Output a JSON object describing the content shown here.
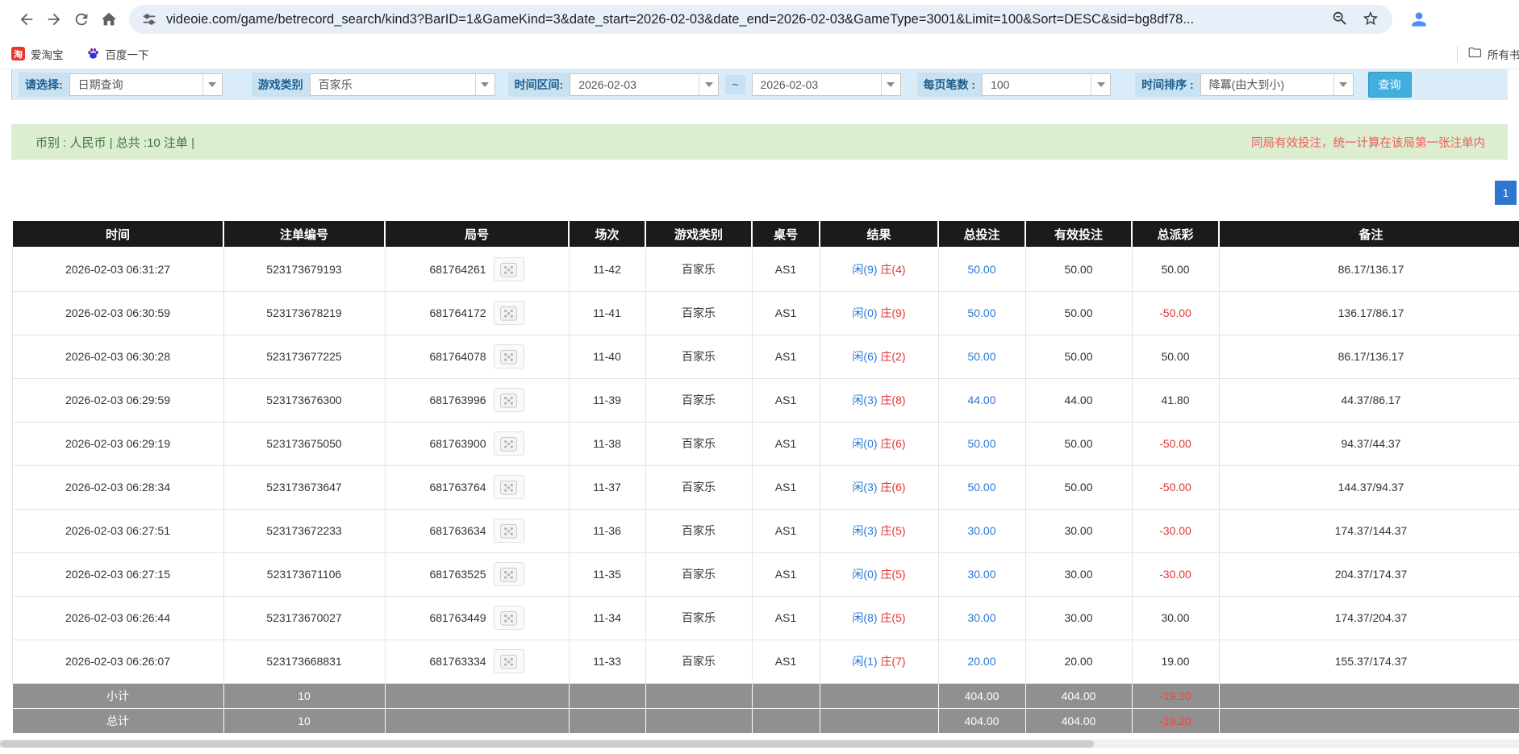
{
  "browser": {
    "url": "videoie.com/game/betrecord_search/kind3?BarID=1&GameKind=3&date_start=2026-02-03&date_end=2026-02-03&GameType=3001&Limit=100&Sort=DESC&sid=bg8df78...",
    "bookmarks": [
      {
        "label": "爱淘宝",
        "icon": "taobao-icon",
        "icon_glyph": "淘"
      },
      {
        "label": "百度一下",
        "icon": "baidu-paw-icon"
      }
    ],
    "all_bookmarks_label": "所有书签"
  },
  "filters": {
    "select_label": "请选择:",
    "select_value": "日期查询",
    "game_kind_label": "游戏类别",
    "game_kind_value": "百家乐",
    "date_range_label": "时间区间:",
    "date_start": "2026-02-03",
    "tilde": "~",
    "date_end": "2026-02-03",
    "per_page_label": "每页笔数 :",
    "per_page_value": "100",
    "sort_label": "时间排序 :",
    "sort_value": "降冪(由大到小)",
    "search_button": "查询"
  },
  "summary": {
    "left": "币别 : 人民币 | 总共 :10 注单 |",
    "right": "同局有效投注，统一计算在该局第一张注单内"
  },
  "pagination": {
    "current": "1"
  },
  "table": {
    "headers": [
      "时间",
      "注单编号",
      "局号",
      "场次",
      "游戏类别",
      "桌号",
      "结果",
      "总投注",
      "有效投注",
      "总派彩",
      "备注"
    ],
    "rows": [
      {
        "time": "2026-02-03 06:31:27",
        "bet_id": "523173679193",
        "round_id": "681764261",
        "session": "11-42",
        "game": "百家乐",
        "table": "AS1",
        "result_player": "闲(9)",
        "result_banker": "庄(4)",
        "total_bet": "50.00",
        "valid_bet": "50.00",
        "payout": "50.00",
        "remark": "86.17/136.17"
      },
      {
        "time": "2026-02-03 06:30:59",
        "bet_id": "523173678219",
        "round_id": "681764172",
        "session": "11-41",
        "game": "百家乐",
        "table": "AS1",
        "result_player": "闲(0)",
        "result_banker": "庄(9)",
        "total_bet": "50.00",
        "valid_bet": "50.00",
        "payout": "-50.00",
        "remark": "136.17/86.17"
      },
      {
        "time": "2026-02-03 06:30:28",
        "bet_id": "523173677225",
        "round_id": "681764078",
        "session": "11-40",
        "game": "百家乐",
        "table": "AS1",
        "result_player": "闲(6)",
        "result_banker": "庄(2)",
        "total_bet": "50.00",
        "valid_bet": "50.00",
        "payout": "50.00",
        "remark": "86.17/136.17"
      },
      {
        "time": "2026-02-03 06:29:59",
        "bet_id": "523173676300",
        "round_id": "681763996",
        "session": "11-39",
        "game": "百家乐",
        "table": "AS1",
        "result_player": "闲(3)",
        "result_banker": "庄(8)",
        "total_bet": "44.00",
        "valid_bet": "44.00",
        "payout": "41.80",
        "remark": "44.37/86.17"
      },
      {
        "time": "2026-02-03 06:29:19",
        "bet_id": "523173675050",
        "round_id": "681763900",
        "session": "11-38",
        "game": "百家乐",
        "table": "AS1",
        "result_player": "闲(0)",
        "result_banker": "庄(6)",
        "total_bet": "50.00",
        "valid_bet": "50.00",
        "payout": "-50.00",
        "remark": "94.37/44.37"
      },
      {
        "time": "2026-02-03 06:28:34",
        "bet_id": "523173673647",
        "round_id": "681763764",
        "session": "11-37",
        "game": "百家乐",
        "table": "AS1",
        "result_player": "闲(3)",
        "result_banker": "庄(6)",
        "total_bet": "50.00",
        "valid_bet": "50.00",
        "payout": "-50.00",
        "remark": "144.37/94.37"
      },
      {
        "time": "2026-02-03 06:27:51",
        "bet_id": "523173672233",
        "round_id": "681763634",
        "session": "11-36",
        "game": "百家乐",
        "table": "AS1",
        "result_player": "闲(3)",
        "result_banker": "庄(5)",
        "total_bet": "30.00",
        "valid_bet": "30.00",
        "payout": "-30.00",
        "remark": "174.37/144.37"
      },
      {
        "time": "2026-02-03 06:27:15",
        "bet_id": "523173671106",
        "round_id": "681763525",
        "session": "11-35",
        "game": "百家乐",
        "table": "AS1",
        "result_player": "闲(0)",
        "result_banker": "庄(5)",
        "total_bet": "30.00",
        "valid_bet": "30.00",
        "payout": "-30.00",
        "remark": "204.37/174.37"
      },
      {
        "time": "2026-02-03 06:26:44",
        "bet_id": "523173670027",
        "round_id": "681763449",
        "session": "11-34",
        "game": "百家乐",
        "table": "AS1",
        "result_player": "闲(8)",
        "result_banker": "庄(5)",
        "total_bet": "30.00",
        "valid_bet": "30.00",
        "payout": "30.00",
        "remark": "174.37/204.37"
      },
      {
        "time": "2026-02-03 06:26:07",
        "bet_id": "523173668831",
        "round_id": "681763334",
        "session": "11-33",
        "game": "百家乐",
        "table": "AS1",
        "result_player": "闲(1)",
        "result_banker": "庄(7)",
        "total_bet": "20.00",
        "valid_bet": "20.00",
        "payout": "19.00",
        "remark": "155.37/174.37"
      }
    ],
    "footer_rows": [
      {
        "label": "小计",
        "count": "10",
        "total_bet": "404.00",
        "valid_bet": "404.00",
        "payout": "-19.20"
      },
      {
        "label": "总计",
        "count": "10",
        "total_bet": "404.00",
        "valid_bet": "404.00",
        "payout": "-19.20"
      }
    ]
  },
  "colors": {
    "accent-blue": "#2878d8",
    "negative-red": "#e03434",
    "header-bg": "#1b1b1b",
    "footer-bg": "#909090",
    "footer-neg": "#ff3e3e",
    "search-btn": "#41aede",
    "filter-bar-bg": "#d9ecf7",
    "filter-label-bg": "#c9e2f2",
    "filter-label-text": "#1b5e8e",
    "summary-bg": "#dcedd0",
    "summary-text-green": "#3a7a3c",
    "summary-text-red": "#f25c5c",
    "pagination-blue": "#2e77d0"
  }
}
